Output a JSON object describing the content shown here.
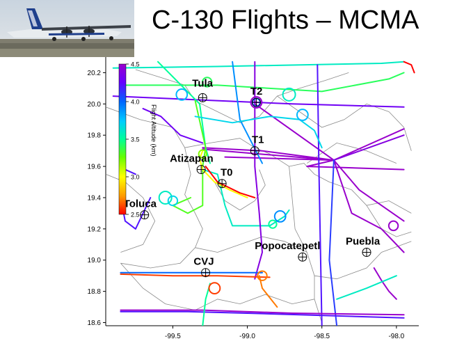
{
  "title": "C-130 Flights – MCMA",
  "colors": {
    "background": "#ffffff",
    "map_lines": "#8a8a8a",
    "ground_track_palette": [
      "#ff0000",
      "#ff9900",
      "#ffff00",
      "#66ff00",
      "#00ff99",
      "#00ccff",
      "#0066ff",
      "#6600ff",
      "#9900cc"
    ]
  },
  "photo": {
    "icon": "c130-aircraft-photo"
  },
  "chart_data": {
    "type": "map",
    "title": "C-130 Flights – MCMA",
    "xlim": [
      -99.95,
      -97.85
    ],
    "ylim": [
      18.58,
      20.3
    ],
    "x_ticks": [
      {
        "value": -99.5,
        "label": "-99.5"
      },
      {
        "value": -99.0,
        "label": "-99.0"
      },
      {
        "value": -98.5,
        "label": "-98.5"
      },
      {
        "value": -98.0,
        "label": "-98.0"
      }
    ],
    "y_ticks": [
      {
        "value": 20.2,
        "label": "20.2"
      },
      {
        "value": 20.0,
        "label": "20.0"
      },
      {
        "value": 19.8,
        "label": "19.8"
      },
      {
        "value": 19.6,
        "label": "19.6"
      },
      {
        "value": 19.4,
        "label": "19.4"
      },
      {
        "value": 19.2,
        "label": "19.2"
      },
      {
        "value": 19.0,
        "label": "19.0"
      },
      {
        "value": 18.8,
        "label": "18.8"
      },
      {
        "value": 18.6,
        "label": "18.6"
      }
    ],
    "colorbar": {
      "label": "Flight Altitude (km)",
      "min": 2.5,
      "max": 4.5,
      "ticks": [
        {
          "value": 4.5,
          "label": "4.5"
        },
        {
          "value": 4.0,
          "label": "4.0"
        },
        {
          "value": 3.5,
          "label": "3.5"
        },
        {
          "value": 3.0,
          "label": "3.0"
        },
        {
          "value": 2.5,
          "label": "2.5"
        }
      ]
    },
    "sites": [
      {
        "name": "Tula",
        "lon": -99.3,
        "lat": 20.04,
        "label_dx": -0.07,
        "label_dy": 0.07
      },
      {
        "name": "T2",
        "lon": -98.94,
        "lat": 20.01,
        "label_dx": -0.04,
        "label_dy": 0.05
      },
      {
        "name": "T1",
        "lon": -98.95,
        "lat": 19.7,
        "label_dx": -0.02,
        "label_dy": 0.05
      },
      {
        "name": "Atizapan",
        "lon": -99.31,
        "lat": 19.58,
        "label_dx": -0.21,
        "label_dy": 0.05
      },
      {
        "name": "T0",
        "lon": -99.17,
        "lat": 19.49,
        "label_dx": -0.01,
        "label_dy": 0.05
      },
      {
        "name": "Toluca",
        "lon": -99.69,
        "lat": 19.29,
        "label_dx": -0.14,
        "label_dy": 0.05
      },
      {
        "name": "Popocatepetl",
        "lon": -98.63,
        "lat": 19.02,
        "label_dx": -0.32,
        "label_dy": 0.05
      },
      {
        "name": "Puebla",
        "lon": -98.2,
        "lat": 19.05,
        "label_dx": -0.14,
        "label_dy": 0.05
      },
      {
        "name": "CVJ",
        "lon": -99.28,
        "lat": 18.92,
        "label_dx": -0.08,
        "label_dy": 0.05
      }
    ],
    "flight_tracks": [
      {
        "alt": 4.3,
        "points": [
          [
            -99.9,
            20.05
          ],
          [
            -98.7,
            20.0
          ],
          [
            -97.95,
            19.98
          ]
        ]
      },
      {
        "alt": 3.6,
        "points": [
          [
            -99.9,
            20.23
          ],
          [
            -99.2,
            20.24
          ],
          [
            -98.1,
            20.26
          ],
          [
            -97.95,
            20.27
          ]
        ]
      },
      {
        "alt": 3.4,
        "points": [
          [
            -99.85,
            20.12
          ],
          [
            -99.2,
            20.12
          ],
          [
            -98.5,
            20.08
          ],
          [
            -98.05,
            20.16
          ],
          [
            -97.95,
            20.2
          ]
        ]
      },
      {
        "alt": 4.6,
        "points": [
          [
            -99.3,
            19.72
          ],
          [
            -98.9,
            19.7
          ],
          [
            -98.42,
            19.64
          ],
          [
            -97.95,
            19.84
          ]
        ]
      },
      {
        "alt": 4.7,
        "points": [
          [
            -99.3,
            19.71
          ],
          [
            -98.42,
            19.64
          ],
          [
            -98.25,
            19.45
          ],
          [
            -97.95,
            19.25
          ]
        ]
      },
      {
        "alt": 4.5,
        "points": [
          [
            -98.95,
            20.0
          ],
          [
            -98.42,
            19.64
          ],
          [
            -98.3,
            19.3
          ],
          [
            -98.1,
            19.2
          ],
          [
            -97.95,
            19.05
          ]
        ]
      },
      {
        "alt": 4.6,
        "points": [
          [
            -99.15,
            19.66
          ],
          [
            -98.42,
            19.64
          ],
          [
            -98.6,
            19.6
          ],
          [
            -97.95,
            19.58
          ]
        ]
      },
      {
        "alt": 4.4,
        "points": [
          [
            -98.42,
            19.64
          ],
          [
            -97.95,
            19.8
          ]
        ]
      },
      {
        "alt": 4.1,
        "points": [
          [
            -98.42,
            19.64
          ],
          [
            -98.45,
            19.0
          ],
          [
            -98.4,
            18.58
          ]
        ]
      },
      {
        "alt": 4.2,
        "points": [
          [
            -98.53,
            20.25
          ],
          [
            -98.52,
            19.6
          ],
          [
            -98.5,
            18.58
          ]
        ]
      },
      {
        "alt": 3.5,
        "points": [
          [
            -99.6,
            20.27
          ],
          [
            -99.32,
            20.0
          ],
          [
            -99.28,
            19.72
          ],
          [
            -99.25,
            19.62
          ]
        ]
      },
      {
        "alt": 3.9,
        "points": [
          [
            -99.1,
            20.27
          ],
          [
            -99.05,
            19.9
          ],
          [
            -98.9,
            19.62
          ]
        ]
      },
      {
        "alt": 4.3,
        "points": [
          [
            -99.3,
            19.75
          ],
          [
            -99.45,
            19.8
          ],
          [
            -99.58,
            19.92
          ],
          [
            -99.7,
            19.97
          ]
        ]
      },
      {
        "alt": 3.3,
        "points": [
          [
            -99.35,
            20.02
          ],
          [
            -99.28,
            19.72
          ],
          [
            -99.3,
            19.6
          ],
          [
            -99.3,
            19.35
          ],
          [
            -99.4,
            19.3
          ],
          [
            -99.5,
            19.35
          ],
          [
            -99.38,
            19.4
          ]
        ]
      },
      {
        "alt": 3.6,
        "points": [
          [
            -99.3,
            19.58
          ],
          [
            -99.2,
            19.55
          ],
          [
            -99.15,
            19.35
          ],
          [
            -99.1,
            19.22
          ],
          [
            -98.85,
            19.22
          ],
          [
            -98.75,
            19.28
          ],
          [
            -98.72,
            19.32
          ]
        ]
      },
      {
        "alt": 4.2,
        "points": [
          [
            -99.75,
            19.55
          ],
          [
            -99.82,
            19.58
          ],
          [
            -99.85,
            19.4
          ],
          [
            -99.82,
            19.25
          ],
          [
            -99.75,
            19.2
          ],
          [
            -99.65,
            19.4
          ]
        ]
      },
      {
        "alt": 3.0,
        "points": [
          [
            -99.3,
            19.7
          ],
          [
            -99.32,
            19.65
          ],
          [
            -99.3,
            19.58
          ],
          [
            -99.22,
            19.5
          ],
          [
            -99.12,
            19.45
          ],
          [
            -99.0,
            19.4
          ]
        ]
      },
      {
        "alt": 2.5,
        "points": [
          [
            -99.28,
            19.6
          ],
          [
            -99.2,
            19.5
          ],
          [
            -99.05,
            19.43
          ],
          [
            -98.95,
            19.4
          ]
        ]
      },
      {
        "alt": 4.4,
        "points": [
          [
            -98.95,
            20.27
          ],
          [
            -98.95,
            19.6
          ],
          [
            -98.92,
            19.3
          ],
          [
            -98.9,
            19.05
          ],
          [
            -98.95,
            18.88
          ]
        ]
      },
      {
        "alt": 3.7,
        "points": [
          [
            -99.35,
            19.92
          ],
          [
            -99.1,
            19.88
          ],
          [
            -98.85,
            19.92
          ],
          [
            -98.65,
            19.9
          ],
          [
            -98.55,
            19.83
          ],
          [
            -98.5,
            19.72
          ]
        ]
      },
      {
        "alt": 4.5,
        "points": [
          [
            -99.85,
            18.68
          ],
          [
            -99.3,
            18.68
          ],
          [
            -98.7,
            18.66
          ],
          [
            -97.95,
            18.65
          ]
        ]
      },
      {
        "alt": 4.2,
        "points": [
          [
            -99.85,
            18.67
          ],
          [
            -99.4,
            18.67
          ],
          [
            -99.0,
            18.66
          ],
          [
            -98.3,
            18.64
          ],
          [
            -97.95,
            18.63
          ]
        ]
      },
      {
        "alt": 2.6,
        "points": [
          [
            -99.85,
            18.91
          ],
          [
            -99.5,
            18.9
          ],
          [
            -99.2,
            18.9
          ],
          [
            -98.85,
            18.89
          ]
        ]
      },
      {
        "alt": 4.0,
        "points": [
          [
            -99.85,
            18.92
          ],
          [
            -99.2,
            18.92
          ],
          [
            -98.9,
            18.92
          ]
        ]
      },
      {
        "alt": 2.7,
        "points": [
          [
            -98.92,
            18.9
          ],
          [
            -98.9,
            18.82
          ],
          [
            -98.85,
            18.76
          ],
          [
            -98.8,
            18.7
          ]
        ]
      },
      {
        "alt": 4.6,
        "points": [
          [
            -98.0,
            18.75
          ],
          [
            -98.05,
            18.8
          ],
          [
            -98.1,
            18.87
          ],
          [
            -98.15,
            18.95
          ]
        ]
      },
      {
        "alt": 3.5,
        "points": [
          [
            -99.3,
            18.58
          ],
          [
            -99.28,
            18.75
          ],
          [
            -99.25,
            18.85
          ]
        ]
      },
      {
        "alt": 3.6,
        "points": [
          [
            -98.4,
            18.75
          ],
          [
            -98.2,
            18.82
          ],
          [
            -98.0,
            18.9
          ]
        ]
      },
      {
        "alt": 2.5,
        "points": [
          [
            -97.95,
            20.27
          ],
          [
            -97.9,
            20.25
          ],
          [
            -97.88,
            20.2
          ]
        ]
      }
    ],
    "loops": [
      {
        "alt": 4.5,
        "lon": -98.94,
        "lat": 20.01,
        "r": 0.035
      },
      {
        "alt": 4.0,
        "lon": -98.94,
        "lat": 20.01,
        "r": 0.025
      },
      {
        "alt": 3.4,
        "lon": -99.27,
        "lat": 20.14,
        "r": 0.03
      },
      {
        "alt": 3.8,
        "lon": -99.44,
        "lat": 20.06,
        "r": 0.035
      },
      {
        "alt": 3.6,
        "lon": -98.72,
        "lat": 20.06,
        "r": 0.04
      },
      {
        "alt": 3.8,
        "lon": -98.63,
        "lat": 19.93,
        "r": 0.035
      },
      {
        "alt": 3.6,
        "lon": -99.55,
        "lat": 19.4,
        "r": 0.04
      },
      {
        "alt": 3.7,
        "lon": -99.5,
        "lat": 19.38,
        "r": 0.03
      },
      {
        "alt": 3.9,
        "lon": -98.78,
        "lat": 19.28,
        "r": 0.035
      },
      {
        "alt": 3.5,
        "lon": -98.83,
        "lat": 19.23,
        "r": 0.025
      },
      {
        "alt": 2.6,
        "lon": -99.22,
        "lat": 18.82,
        "r": 0.035
      },
      {
        "alt": 2.7,
        "lon": -98.9,
        "lat": 18.9,
        "r": 0.03
      },
      {
        "alt": 4.5,
        "lon": -98.02,
        "lat": 19.22,
        "r": 0.03
      },
      {
        "alt": 3.2,
        "lon": -99.3,
        "lat": 19.68,
        "r": 0.025
      }
    ],
    "boundaries": [
      [
        [
          -99.75,
          20.22
        ],
        [
          -99.55,
          20.16
        ],
        [
          -99.42,
          20.12
        ],
        [
          -99.35,
          20.02
        ],
        [
          -99.2,
          19.95
        ],
        [
          -99.05,
          19.88
        ],
        [
          -98.92,
          19.92
        ],
        [
          -98.8,
          20.05
        ],
        [
          -98.65,
          20.1
        ],
        [
          -98.48,
          20.15
        ],
        [
          -98.32,
          20.2
        ]
      ],
      [
        [
          -99.95,
          19.98
        ],
        [
          -99.72,
          19.9
        ],
        [
          -99.5,
          19.85
        ],
        [
          -99.42,
          19.72
        ],
        [
          -99.38,
          19.55
        ],
        [
          -99.42,
          19.42
        ],
        [
          -99.35,
          19.3
        ],
        [
          -99.3,
          19.2
        ],
        [
          -99.35,
          19.08
        ],
        [
          -99.45,
          18.98
        ],
        [
          -99.65,
          18.95
        ],
        [
          -99.85,
          18.98
        ]
      ],
      [
        [
          -99.42,
          19.72
        ],
        [
          -99.25,
          19.75
        ],
        [
          -99.05,
          19.78
        ],
        [
          -98.95,
          19.72
        ],
        [
          -98.85,
          19.68
        ],
        [
          -98.72,
          19.6
        ],
        [
          -98.62,
          19.62
        ],
        [
          -98.55,
          19.55
        ],
        [
          -98.45,
          19.5
        ]
      ],
      [
        [
          -98.72,
          19.6
        ],
        [
          -98.7,
          19.4
        ],
        [
          -98.68,
          19.2
        ],
        [
          -98.6,
          19.05
        ],
        [
          -98.55,
          18.9
        ],
        [
          -98.55,
          18.75
        ],
        [
          -98.5,
          18.6
        ]
      ],
      [
        [
          -99.35,
          19.08
        ],
        [
          -99.2,
          19.05
        ],
        [
          -99.05,
          19.1
        ],
        [
          -98.9,
          19.15
        ],
        [
          -98.75,
          19.12
        ],
        [
          -98.6,
          19.05
        ]
      ],
      [
        [
          -98.45,
          19.5
        ],
        [
          -98.3,
          19.45
        ],
        [
          -98.2,
          19.35
        ],
        [
          -98.05,
          19.38
        ],
        [
          -97.9,
          19.3
        ]
      ],
      [
        [
          -98.55,
          18.9
        ],
        [
          -98.4,
          18.88
        ],
        [
          -98.2,
          18.95
        ],
        [
          -98.1,
          19.05
        ],
        [
          -97.9,
          19.12
        ]
      ],
      [
        [
          -99.85,
          18.98
        ],
        [
          -99.7,
          18.82
        ],
        [
          -99.55,
          18.72
        ],
        [
          -99.35,
          18.68
        ],
        [
          -99.2,
          18.75
        ],
        [
          -99.05,
          18.72
        ],
        [
          -98.88,
          18.78
        ],
        [
          -98.7,
          18.72
        ],
        [
          -98.55,
          18.75
        ]
      ],
      [
        [
          -98.6,
          19.62
        ],
        [
          -98.4,
          19.75
        ],
        [
          -98.2,
          19.7
        ],
        [
          -98.0,
          19.62
        ]
      ],
      [
        [
          -98.8,
          20.05
        ],
        [
          -98.65,
          19.95
        ],
        [
          -98.5,
          19.85
        ],
        [
          -98.35,
          19.9
        ],
        [
          -98.2,
          20.0
        ],
        [
          -98.05,
          19.95
        ]
      ],
      [
        [
          -99.22,
          19.5
        ],
        [
          -99.15,
          19.38
        ],
        [
          -99.05,
          19.32
        ],
        [
          -98.95,
          19.38
        ],
        [
          -98.88,
          19.48
        ],
        [
          -98.92,
          19.58
        ]
      ],
      [
        [
          -99.95,
          19.55
        ],
        [
          -99.82,
          19.5
        ],
        [
          -99.7,
          19.4
        ],
        [
          -99.62,
          19.25
        ],
        [
          -99.7,
          19.1
        ],
        [
          -99.85,
          19.05
        ]
      ],
      [
        [
          -98.05,
          19.95
        ],
        [
          -97.95,
          19.85
        ],
        [
          -97.9,
          19.7
        ]
      ],
      [
        [
          -98.2,
          19.35
        ],
        [
          -98.1,
          19.2
        ],
        [
          -98.0,
          19.15
        ],
        [
          -97.9,
          19.18
        ]
      ]
    ]
  }
}
